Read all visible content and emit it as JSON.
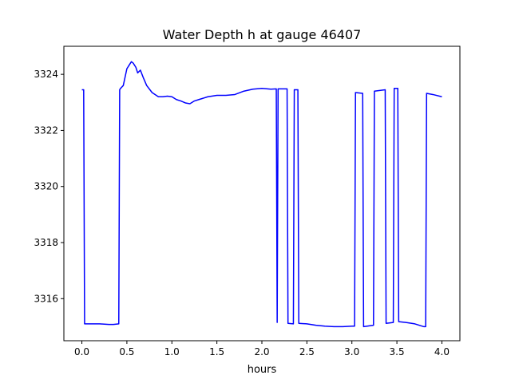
{
  "chart_data": {
    "type": "line",
    "title": "Water Depth h at gauge 46407",
    "xlabel": "hours",
    "ylabel": "",
    "xlim": [
      -0.2,
      4.2
    ],
    "ylim": [
      3314.5,
      3325.0
    ],
    "xticks": [
      0.0,
      0.5,
      1.0,
      1.5,
      2.0,
      2.5,
      3.0,
      3.5,
      4.0
    ],
    "xtick_labels": [
      "0.0",
      "0.5",
      "1.0",
      "1.5",
      "2.0",
      "2.5",
      "3.0",
      "3.5",
      "4.0"
    ],
    "yticks": [
      3316,
      3318,
      3320,
      3322,
      3324
    ],
    "ytick_labels": [
      "3316",
      "3318",
      "3320",
      "3322",
      "3324"
    ],
    "grid": false,
    "series": [
      {
        "color": "#0000ff",
        "x": [
          0.0,
          0.02,
          0.03,
          0.1,
          0.2,
          0.3,
          0.35,
          0.41,
          0.42,
          0.43,
          0.46,
          0.5,
          0.53,
          0.55,
          0.57,
          0.6,
          0.62,
          0.65,
          0.68,
          0.72,
          0.78,
          0.85,
          0.9,
          0.95,
          1.0,
          1.05,
          1.1,
          1.15,
          1.2,
          1.25,
          1.3,
          1.4,
          1.5,
          1.6,
          1.7,
          1.8,
          1.9,
          2.0,
          2.1,
          2.16,
          2.17,
          2.18,
          2.19,
          2.28,
          2.29,
          2.35,
          2.36,
          2.4,
          2.41,
          2.5,
          2.6,
          2.7,
          2.8,
          2.9,
          3.0,
          3.03,
          3.04,
          3.12,
          3.13,
          3.24,
          3.25,
          3.37,
          3.38,
          3.46,
          3.47,
          3.51,
          3.52,
          3.6,
          3.7,
          3.8,
          3.82,
          3.83,
          3.9,
          4.0
        ],
        "y": [
          3323.45,
          3323.45,
          3315.1,
          3315.1,
          3315.1,
          3315.08,
          3315.08,
          3315.1,
          3323.45,
          3323.5,
          3323.6,
          3324.2,
          3324.35,
          3324.45,
          3324.4,
          3324.25,
          3324.05,
          3324.15,
          3323.9,
          3323.6,
          3323.35,
          3323.2,
          3323.2,
          3323.22,
          3323.2,
          3323.1,
          3323.05,
          3322.98,
          3322.95,
          3323.05,
          3323.1,
          3323.2,
          3323.25,
          3323.25,
          3323.28,
          3323.4,
          3323.47,
          3323.5,
          3323.47,
          3323.48,
          3315.15,
          3323.48,
          3323.48,
          3323.48,
          3315.12,
          3315.1,
          3323.45,
          3323.45,
          3315.12,
          3315.1,
          3315.05,
          3315.02,
          3315.0,
          3315.0,
          3315.02,
          3315.02,
          3323.35,
          3323.32,
          3315.0,
          3315.05,
          3323.4,
          3323.45,
          3315.12,
          3315.15,
          3323.5,
          3323.5,
          3315.18,
          3315.15,
          3315.1,
          3315.0,
          3315.0,
          3323.32,
          3323.28,
          3323.2
        ]
      }
    ]
  }
}
